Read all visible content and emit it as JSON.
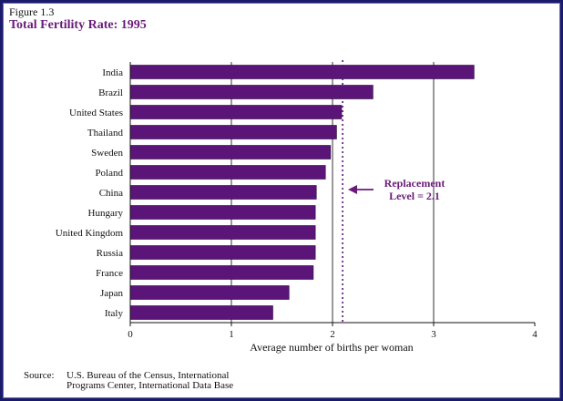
{
  "figure": {
    "label": "Figure 1.3",
    "title": "Total Fertility Rate:  1995"
  },
  "source": {
    "key": "Source:",
    "line1": "U.S. Bureau of the Census, International",
    "line2": "Programs Center, International Data Base"
  },
  "chart_data": {
    "type": "bar",
    "orientation": "horizontal",
    "categories": [
      "India",
      "Brazil",
      "United States",
      "Thailand",
      "Sweden",
      "Poland",
      "China",
      "Hungary",
      "United Kingdom",
      "Russia",
      "France",
      "Japan",
      "Italy"
    ],
    "values": [
      3.4,
      2.4,
      2.09,
      2.04,
      1.98,
      1.93,
      1.84,
      1.83,
      1.83,
      1.83,
      1.81,
      1.57,
      1.41
    ],
    "xlabel": "Average number of births per woman",
    "ylabel": "",
    "xlim": [
      0,
      4
    ],
    "xticks": [
      "0",
      "1",
      "2",
      "3",
      "4"
    ],
    "grid": "vertical gridlines at 1, 2, 3",
    "bar_color": "#5b1478",
    "reference_line": {
      "value": 2.1,
      "style": "dotted",
      "color": "#5b1478"
    },
    "annotation": {
      "line1": "Replacement",
      "line2": "Level = 2.1",
      "color": "#6a1b7a"
    }
  }
}
